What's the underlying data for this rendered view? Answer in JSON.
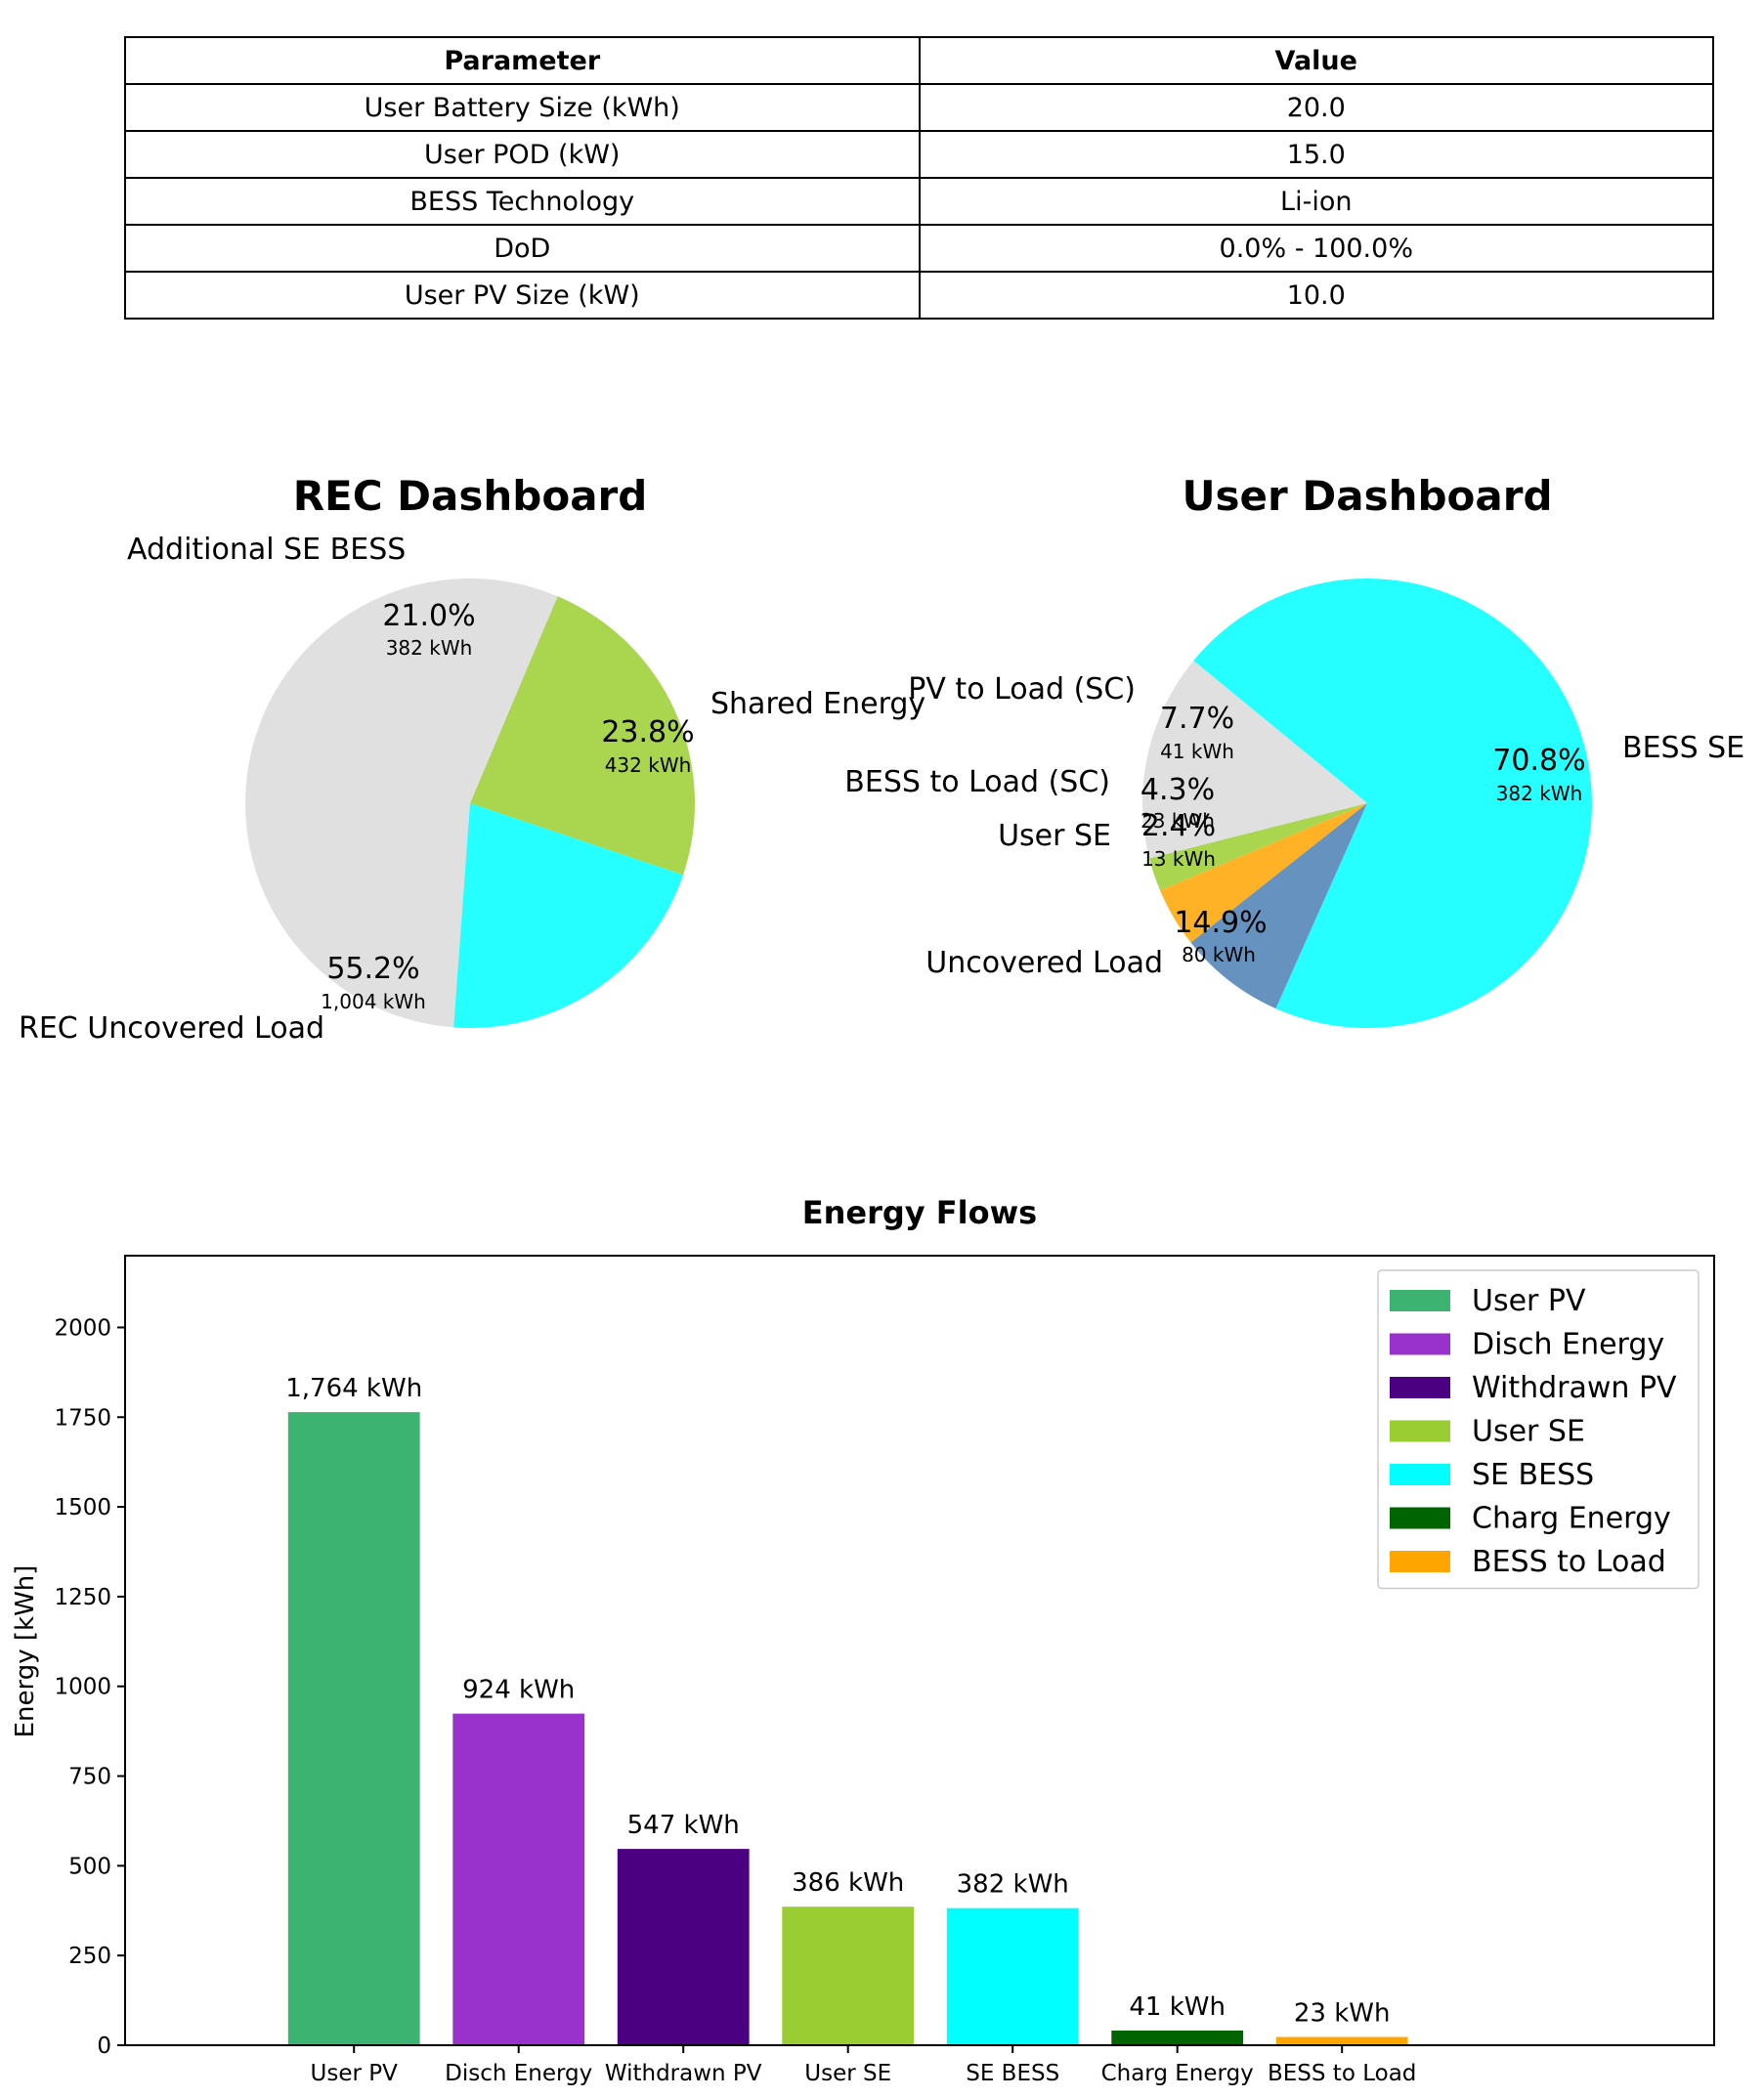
{
  "param_table": {
    "headers": [
      "Parameter",
      "Value"
    ],
    "rows": [
      [
        "User Battery Size (kWh)",
        "20.0"
      ],
      [
        "User POD (kW)",
        "15.0"
      ],
      [
        "BESS Technology",
        "Li-ion"
      ],
      [
        "DoD",
        "0.0% - 100.0%"
      ],
      [
        "User PV Size (kW)",
        "10.0"
      ]
    ]
  },
  "chart_data": [
    {
      "type": "pie",
      "title": "REC Dashboard",
      "slices": [
        {
          "label": "Shared Energy",
          "pct": "23.8%",
          "kwh": "432 kWh",
          "value": 23.8,
          "color": "#a9d54f"
        },
        {
          "label": "REC Uncovered Load",
          "pct": "55.2%",
          "kwh": "1,004 kWh",
          "value": 55.2,
          "color": "#e0e0e0"
        },
        {
          "label": "Additional SE BESS",
          "pct": "21.0%",
          "kwh": "382 kWh",
          "value": 21.0,
          "color": "#26ffff"
        }
      ]
    },
    {
      "type": "pie",
      "title": "User Dashboard",
      "slices": [
        {
          "label": "BESS SE",
          "pct": "70.8%",
          "kwh": "382 kWh",
          "value": 70.8,
          "color": "#26ffff"
        },
        {
          "label": "Uncovered Load",
          "pct": "14.9%",
          "kwh": "80 kWh",
          "value": 14.9,
          "color": "#e0e0e0"
        },
        {
          "label": "User SE",
          "pct": "2.4%",
          "kwh": "13 kWh",
          "value": 2.4,
          "color": "#a9d54f"
        },
        {
          "label": "BESS to Load (SC)",
          "pct": "4.3%",
          "kwh": "23 kWh",
          "value": 4.3,
          "color": "#ffb226"
        },
        {
          "label": "PV to Load (SC)",
          "pct": "7.7%",
          "kwh": "41 kWh",
          "value": 7.7,
          "color": "#6592bf"
        }
      ]
    },
    {
      "type": "bar",
      "title": "Energy Flows",
      "ylabel": "Energy [kWh]",
      "ylim": [
        0,
        2200
      ],
      "yticks": [
        0,
        250,
        500,
        750,
        1000,
        1250,
        1500,
        1750,
        2000
      ],
      "legend": "top-right",
      "categories": [
        "User PV",
        "Disch Energy",
        "Withdrawn PV",
        "User SE",
        "SE BESS",
        "Charg Energy",
        "BESS to Load"
      ],
      "values": [
        1764,
        924,
        547,
        386,
        382,
        41,
        23
      ],
      "labels": [
        "1,764 kWh",
        "924 kWh",
        "547 kWh",
        "386 kWh",
        "382 kWh",
        "41 kWh",
        "23 kWh"
      ],
      "colors": [
        "#3cb371",
        "#9932cc",
        "#4b0082",
        "#9acd32",
        "#00ffff",
        "#006400",
        "#ffa500"
      ]
    }
  ]
}
